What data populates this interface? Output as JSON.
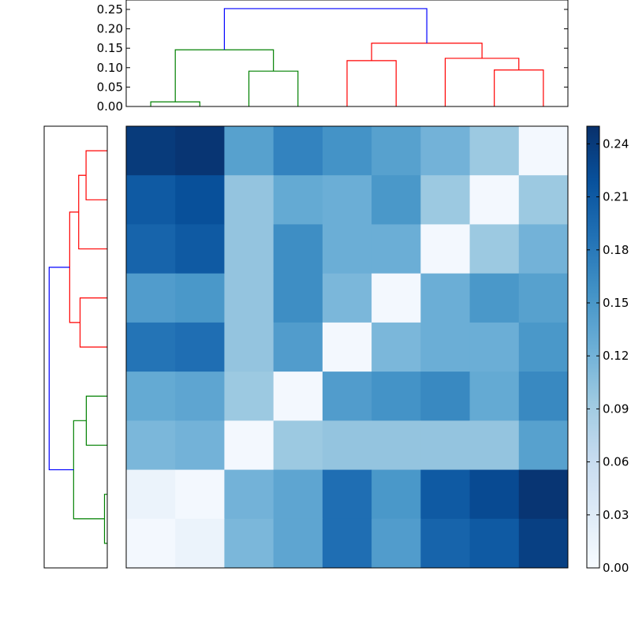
{
  "chart_data": {
    "type": "heatmap",
    "title": "",
    "xlabel": "",
    "ylabel": "",
    "n_rows": 9,
    "n_cols": 9,
    "matrix": [
      [
        0.24,
        0.245,
        0.14,
        0.17,
        0.155,
        0.14,
        0.12,
        0.095,
        0.005
      ],
      [
        0.21,
        0.22,
        0.1,
        0.13,
        0.125,
        0.15,
        0.095,
        0.005,
        0.095
      ],
      [
        0.2,
        0.21,
        0.1,
        0.16,
        0.125,
        0.125,
        0.005,
        0.095,
        0.12
      ],
      [
        0.145,
        0.15,
        0.1,
        0.16,
        0.115,
        0.005,
        0.125,
        0.15,
        0.14
      ],
      [
        0.185,
        0.19,
        0.1,
        0.145,
        0.005,
        0.115,
        0.125,
        0.125,
        0.15
      ],
      [
        0.13,
        0.135,
        0.095,
        0.005,
        0.145,
        0.155,
        0.165,
        0.13,
        0.165
      ],
      [
        0.115,
        0.12,
        0.005,
        0.095,
        0.1,
        0.1,
        0.1,
        0.1,
        0.14
      ],
      [
        0.015,
        0.005,
        0.12,
        0.135,
        0.19,
        0.15,
        0.21,
        0.225,
        0.245
      ],
      [
        0.005,
        0.015,
        0.115,
        0.135,
        0.19,
        0.145,
        0.2,
        0.21,
        0.235
      ]
    ],
    "colormap": "Blues",
    "vmin": 0.0,
    "vmax": 0.25,
    "colorbar": {
      "ticks": [
        0.0,
        0.03,
        0.06,
        0.09,
        0.12,
        0.15,
        0.18,
        0.21,
        0.24
      ],
      "tick_labels": [
        "0.00",
        "0.03",
        "0.06",
        "0.09",
        "0.12",
        "0.15",
        "0.18",
        "0.21",
        "0.24"
      ]
    },
    "top_dendrogram": {
      "ylim": [
        0.0,
        0.26
      ],
      "ticks": [
        0.0,
        0.05,
        0.1,
        0.15,
        0.2,
        0.25
      ],
      "tick_labels": [
        "0.00",
        "0.05",
        "0.10",
        "0.15",
        "0.20",
        "0.25"
      ],
      "links": [
        {
          "left": 0.5,
          "right": 1.5,
          "height": 0.012,
          "color": "#008000"
        },
        {
          "left": 2.5,
          "right": 3.5,
          "height": 0.091,
          "color": "#008000"
        },
        {
          "left": 1.0,
          "right": 3.0,
          "height": 0.146,
          "color": "#008000"
        },
        {
          "left": 4.5,
          "right": 5.5,
          "height": 0.118,
          "color": "#ff0000"
        },
        {
          "left": 7.5,
          "right": 8.5,
          "height": 0.094,
          "color": "#ff0000"
        },
        {
          "left": 6.5,
          "right": 8.0,
          "height": 0.124,
          "color": "#ff0000"
        },
        {
          "left": 5.0,
          "right": 7.25,
          "height": 0.163,
          "color": "#ff0000"
        },
        {
          "left": 2.0,
          "right": 6.125,
          "height": 0.252,
          "color": "#0000ff"
        }
      ],
      "leaf_tops": {
        "0.5": 0,
        "1.5": 0,
        "2.5": 0,
        "3.5": 0,
        "4.5": 0,
        "5.5": 0,
        "6.5": 0,
        "7.5": 0,
        "8.5": 0
      }
    },
    "left_dendrogram": {
      "xlim": [
        0.0,
        0.26
      ],
      "links": [
        {
          "top": 0.5,
          "bottom": 1.5,
          "height": 0.092,
          "color": "#ff0000"
        },
        {
          "top": 0.5,
          "bottom": 1.5,
          "height": 0.092,
          "color": "#ff0000",
          "skip": true
        },
        {
          "top": 3.5,
          "bottom": 4.5,
          "height": 0.118,
          "color": "#ff0000"
        },
        {
          "top": 1.0,
          "bottom": 2.5,
          "height": 0.124,
          "color": "#ff0000"
        },
        {
          "top": 1.75,
          "bottom": 4.0,
          "height": 0.163,
          "color": "#ff0000"
        },
        {
          "top": 5.5,
          "bottom": 6.5,
          "height": 0.091,
          "color": "#008000"
        },
        {
          "top": 7.5,
          "bottom": 8.5,
          "height": 0.012,
          "color": "#008000"
        },
        {
          "top": 6.0,
          "bottom": 8.0,
          "height": 0.146,
          "color": "#008000"
        },
        {
          "top": 2.875,
          "bottom": 7.0,
          "height": 0.252,
          "color": "#0000ff"
        }
      ]
    }
  }
}
